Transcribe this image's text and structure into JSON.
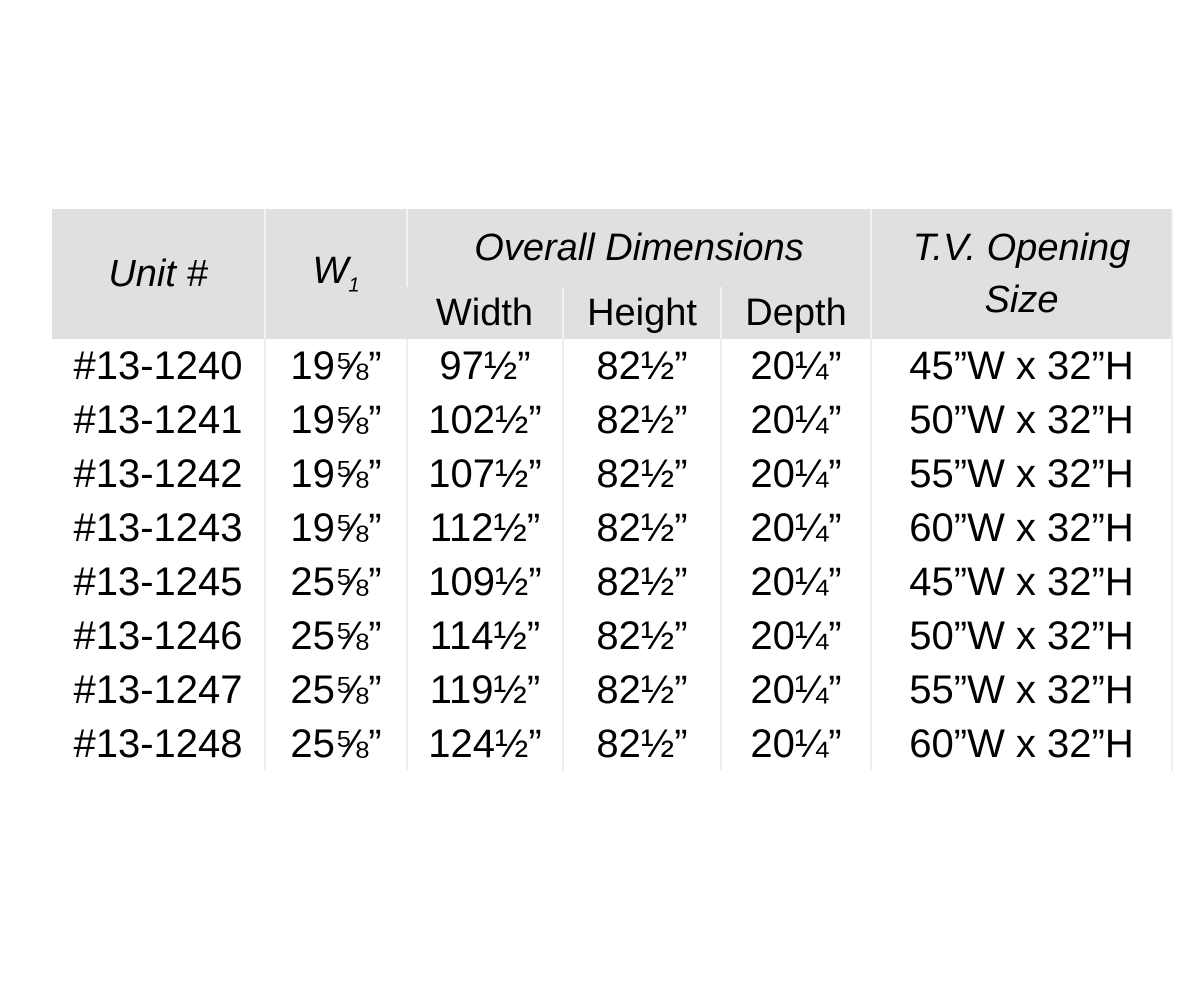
{
  "headers": {
    "unit": "Unit #",
    "w1_main": "W",
    "w1_sub": "1",
    "overall": "Overall Dimensions",
    "width": "Width",
    "height": "Height",
    "depth": "Depth",
    "tv": "T.V. Opening Size"
  },
  "rows": [
    {
      "unit": "#13-1240",
      "w1": "19⅝”",
      "width": "97½”",
      "height": "82½”",
      "depth": "20¼”",
      "tv": "45”W x 32”H"
    },
    {
      "unit": "#13-1241",
      "w1": "19⅝”",
      "width": "102½”",
      "height": "82½”",
      "depth": "20¼”",
      "tv": "50”W x 32”H"
    },
    {
      "unit": "#13-1242",
      "w1": "19⅝”",
      "width": "107½”",
      "height": "82½”",
      "depth": "20¼”",
      "tv": "55”W x 32”H"
    },
    {
      "unit": "#13-1243",
      "w1": "19⅝”",
      "width": "112½”",
      "height": "82½”",
      "depth": "20¼”",
      "tv": "60”W x 32”H"
    },
    {
      "unit": "#13-1245",
      "w1": "25⅝”",
      "width": "109½”",
      "height": "82½”",
      "depth": "20¼”",
      "tv": "45”W x 32”H"
    },
    {
      "unit": "#13-1246",
      "w1": "25⅝”",
      "width": "114½”",
      "height": "82½”",
      "depth": "20¼”",
      "tv": "50”W x 32”H"
    },
    {
      "unit": "#13-1247",
      "w1": "25⅝”",
      "width": "119½”",
      "height": "82½”",
      "depth": "20¼”",
      "tv": "55”W x 32”H"
    },
    {
      "unit": "#13-1248",
      "w1": "25⅝”",
      "width": "124½”",
      "height": "82½”",
      "depth": "20¼”",
      "tv": "60”W x 32”H"
    }
  ]
}
